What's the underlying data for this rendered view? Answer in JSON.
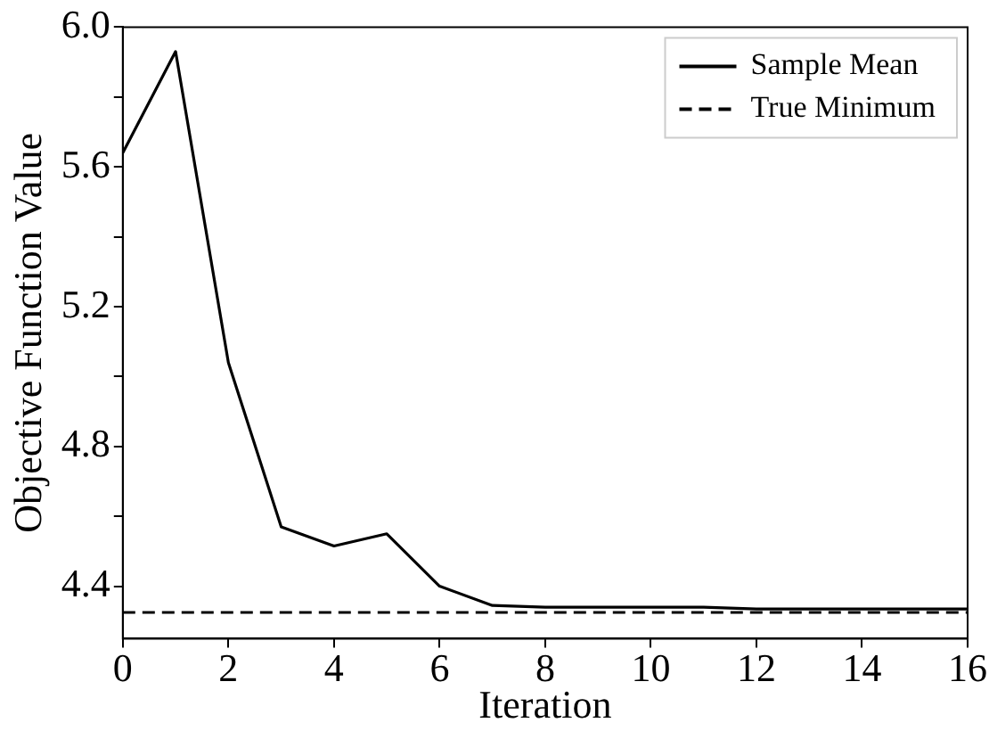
{
  "chart_data": {
    "type": "line",
    "xlabel": "Iteration",
    "ylabel": "Objective Function Value",
    "x": [
      0,
      1,
      2,
      3,
      4,
      5,
      6,
      7,
      8,
      9,
      10,
      11,
      12,
      13,
      14,
      15,
      16
    ],
    "series": [
      {
        "name": "Sample Mean",
        "color": "#000000",
        "line_style": "solid",
        "values": [
          5.64,
          5.93,
          5.04,
          4.57,
          4.515,
          4.55,
          4.4,
          4.345,
          4.34,
          4.34,
          4.34,
          4.34,
          4.335,
          4.335,
          4.335,
          4.335,
          4.335
        ]
      },
      {
        "name": "True Minimum",
        "color": "#000000",
        "line_style": "dashed",
        "x": [
          0,
          16
        ],
        "values": [
          4.325,
          4.325
        ]
      }
    ],
    "xlim": [
      0,
      16
    ],
    "xticks": [
      0,
      2,
      4,
      6,
      8,
      10,
      12,
      14,
      16
    ],
    "ylim": [
      4.25,
      6.0
    ],
    "yticks": [
      {
        "value": 4.4,
        "label": "4.4"
      },
      {
        "value": 4.6,
        "label": null
      },
      {
        "value": 4.8,
        "label": "4.8"
      },
      {
        "value": 5.0,
        "label": null
      },
      {
        "value": 5.2,
        "label": "5.2"
      },
      {
        "value": 5.4,
        "label": null
      },
      {
        "value": 5.6,
        "label": "5.6"
      },
      {
        "value": 5.8,
        "label": null
      },
      {
        "value": 6.0,
        "label": "6.0"
      }
    ],
    "grid": false,
    "legend": "top right",
    "marker": "none"
  }
}
